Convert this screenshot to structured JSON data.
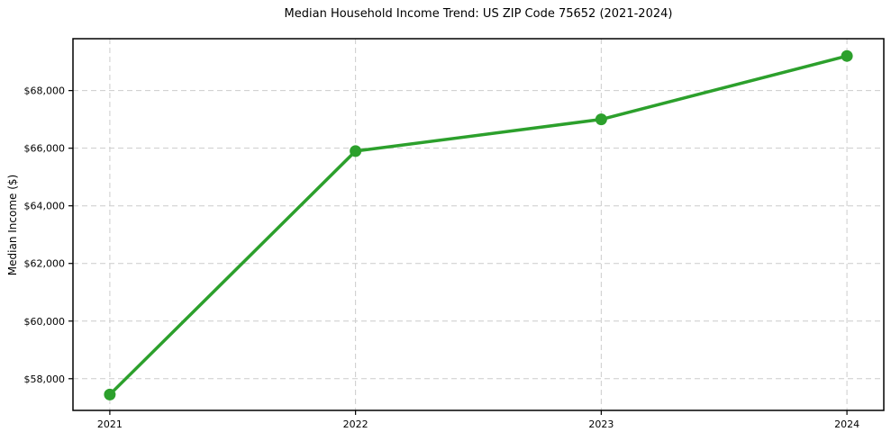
{
  "chart_data": {
    "type": "line",
    "title": "Median Household Income Trend: US ZIP Code 75652 (2021-2024)",
    "xlabel": "",
    "ylabel": "Median Income ($)",
    "x": [
      2021,
      2022,
      2023,
      2024
    ],
    "xtick_labels": [
      "2021",
      "2022",
      "2023",
      "2024"
    ],
    "series": [
      {
        "values": [
          57450,
          65900,
          67000,
          69200
        ]
      }
    ],
    "yticks": [
      58000,
      60000,
      62000,
      64000,
      66000,
      68000
    ],
    "ytick_labels": [
      "$58,000",
      "$60,000",
      "$62,000",
      "$64,000",
      "$66,000",
      "$68,000"
    ],
    "xlim": [
      2020.85,
      2024.15
    ],
    "ylim": [
      56900,
      69800
    ],
    "grid": true,
    "grid_style": "dashed",
    "legend": false,
    "marker": "circle",
    "colors": {
      "line": "#2ca02c",
      "marker": "#2ca02c",
      "grid": "#cccccc",
      "axis": "#000000",
      "tick_text": "#000000",
      "background": "#ffffff"
    }
  }
}
